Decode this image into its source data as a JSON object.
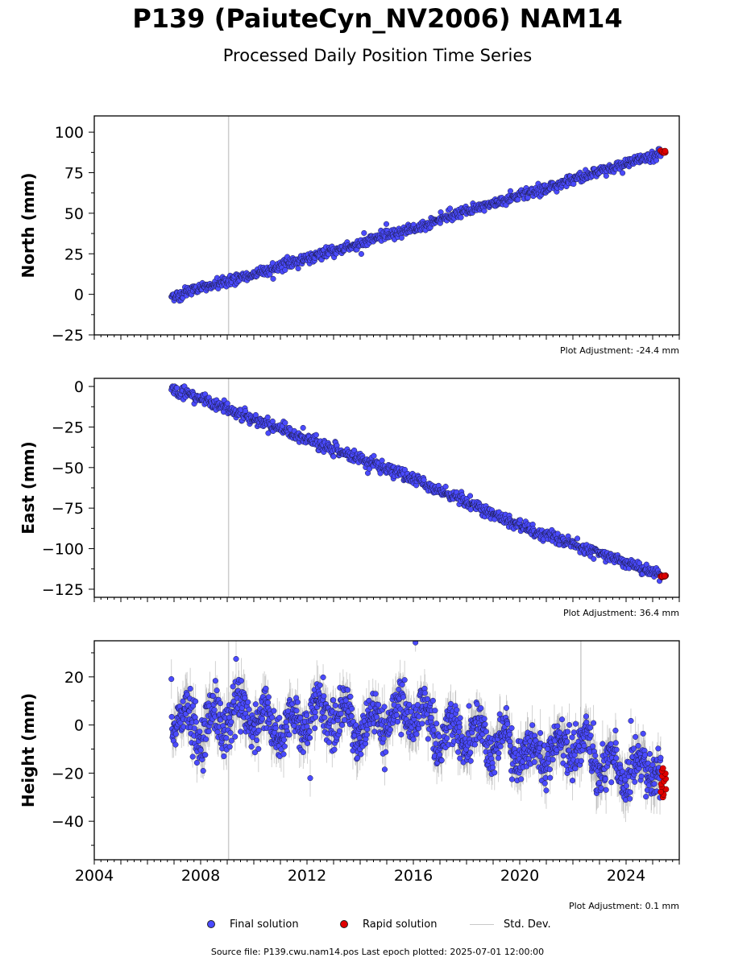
{
  "title": "P139 (PaiuteCyn_NV2006) NAM14",
  "subtitle": "Processed Daily Position Time Series",
  "legend": {
    "final": "Final solution",
    "rapid": "Rapid solution",
    "std": "Std. Dev."
  },
  "footer": "Source file: P139.cwu.nam14.pos  Last epoch plotted: 2025-07-01 12:00:00",
  "colors": {
    "final": "#4a4aff",
    "rapid": "#e00000",
    "std": "#c8c8c8"
  },
  "chart_data": [
    {
      "type": "scatter",
      "ylabel": "North (mm)",
      "xlim": [
        2004,
        2026
      ],
      "ylim": [
        -25,
        110
      ],
      "yticks": [
        -25,
        0,
        25,
        50,
        75,
        100
      ],
      "adjustment": "Plot Adjustment: -24.4 mm",
      "series": [
        {
          "name": "Final solution",
          "trend": [
            [
              2006.9,
              -1
            ],
            [
              2009,
              8
            ],
            [
              2016,
              41
            ],
            [
              2020,
              61
            ],
            [
              2025.3,
              87
            ]
          ],
          "noise_mm": 1.6
        },
        {
          "name": "Rapid solution",
          "x_range": [
            2025.3,
            2025.5
          ],
          "y": 88
        }
      ]
    },
    {
      "type": "scatter",
      "ylabel": "East (mm)",
      "xlim": [
        2004,
        2026
      ],
      "ylim": [
        -130,
        5
      ],
      "yticks": [
        -125,
        -100,
        -75,
        -50,
        -25,
        0
      ],
      "adjustment": "Plot Adjustment: 36.4 mm",
      "series": [
        {
          "name": "Final solution",
          "trend": [
            [
              2006.9,
              -1
            ],
            [
              2009,
              -14
            ],
            [
              2016,
              -57
            ],
            [
              2020,
              -86
            ],
            [
              2025.3,
              -116
            ]
          ],
          "noise_mm": 1.8
        },
        {
          "name": "Rapid solution",
          "x_range": [
            2025.3,
            2025.5
          ],
          "y": -117
        }
      ]
    },
    {
      "type": "scatter",
      "ylabel": "Height (mm)",
      "xlim": [
        2004,
        2026
      ],
      "ylim": [
        -56,
        35
      ],
      "yticks": [
        -40,
        -20,
        0,
        20
      ],
      "xticks": [
        2004,
        2008,
        2012,
        2016,
        2020,
        2024
      ],
      "adjustment": "Plot Adjustment: 0.1 mm",
      "series": [
        {
          "name": "Final solution",
          "trend": [
            [
              2006.9,
              2
            ],
            [
              2012,
              2
            ],
            [
              2016,
              3
            ],
            [
              2019,
              -8
            ],
            [
              2022,
              -10
            ],
            [
              2025.3,
              -22
            ]
          ],
          "noise_mm": 6
        },
        {
          "name": "Rapid solution",
          "x_range": [
            2025.3,
            2025.5
          ],
          "y_range": [
            -30,
            -18
          ]
        }
      ]
    }
  ]
}
